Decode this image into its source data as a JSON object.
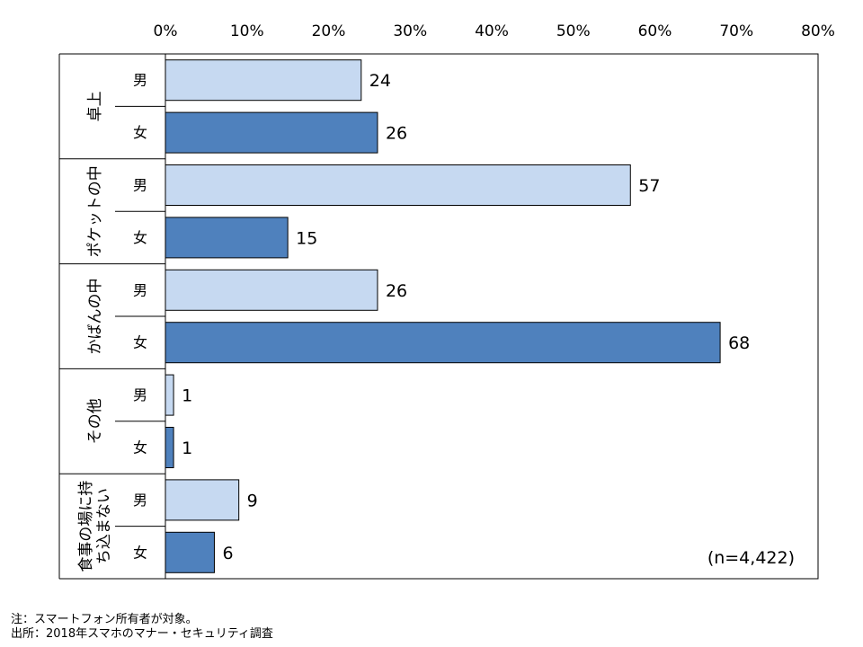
{
  "chart_data": {
    "type": "bar",
    "orientation": "horizontal",
    "x_ticks": [
      "0%",
      "10%",
      "20%",
      "30%",
      "40%",
      "50%",
      "60%",
      "70%",
      "80%"
    ],
    "xlim": [
      0,
      80
    ],
    "x_tick_step": 10,
    "x_axis_position": "top",
    "grid": false,
    "categories": [
      "卓上",
      "ポケットの中",
      "かばんの中",
      "その他",
      "食事の場に持ち込まない"
    ],
    "category_lines": [
      [
        "卓上"
      ],
      [
        "ポケットの中"
      ],
      [
        "かばんの中"
      ],
      [
        "その他"
      ],
      [
        "食事の場に持",
        "ち込まない"
      ]
    ],
    "sub_labels": [
      "男",
      "女"
    ],
    "series": [
      {
        "label": "男",
        "color": "#c6d9f1",
        "values": [
          24,
          57,
          26,
          1,
          9
        ]
      },
      {
        "label": "女",
        "color": "#4f81bd",
        "values": [
          26,
          15,
          68,
          1,
          6
        ]
      }
    ],
    "annotation": "(n=4,422)"
  },
  "notes": {
    "note": "注：スマートフォン所有者が対象。",
    "source": "出所：2018年スマホのマナー・セキュリティ調査"
  }
}
